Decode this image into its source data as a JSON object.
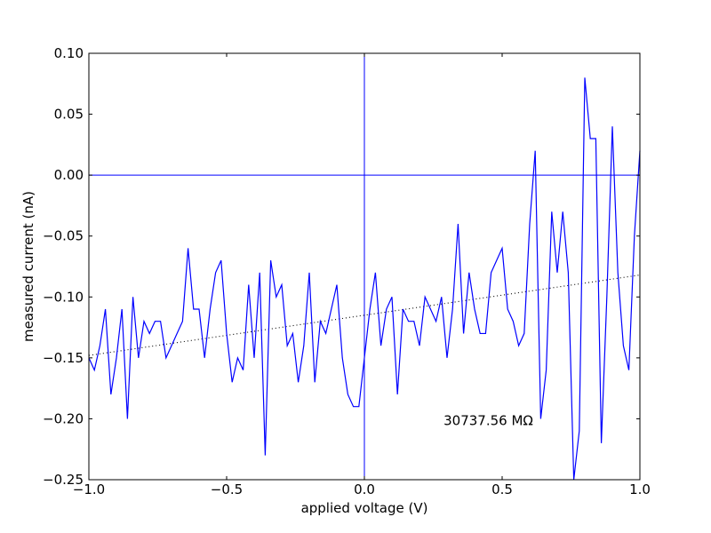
{
  "chart_data": {
    "type": "line",
    "title": "",
    "xlabel": "applied voltage (V)",
    "ylabel": "measured current (nA)",
    "xlim": [
      -1.0,
      1.0
    ],
    "ylim": [
      -0.25,
      0.1
    ],
    "xticks": [
      -1.0,
      -0.5,
      0.0,
      0.5,
      1.0
    ],
    "xtick_labels": [
      "−1.0",
      "−0.5",
      "0.0",
      "0.5",
      "1.0"
    ],
    "yticks": [
      -0.25,
      -0.2,
      -0.15,
      -0.1,
      -0.05,
      0.0,
      0.05,
      0.1
    ],
    "ytick_labels": [
      "−0.25",
      "−0.20",
      "−0.15",
      "−0.10",
      "−0.05",
      "0.00",
      "0.05",
      "0.10"
    ],
    "grid": false,
    "colors": {
      "data": "#0000ff",
      "fit": "#000000"
    },
    "annotation": {
      "text": "30737.56 MΩ",
      "x": 0.45,
      "y": -0.205
    },
    "reference_lines": {
      "horizontal_y": 0.0,
      "vertical_x": 0.0
    },
    "fit_line": {
      "style": "dotted",
      "x": [
        -1.0,
        1.0
      ],
      "y": [
        -0.148,
        -0.082
      ]
    },
    "series": [
      {
        "x": [
          -1.0,
          -0.98,
          -0.96,
          -0.94,
          -0.92,
          -0.9,
          -0.88,
          -0.86,
          -0.84,
          -0.82,
          -0.8,
          -0.78,
          -0.76,
          -0.74,
          -0.72,
          -0.7,
          -0.68,
          -0.66,
          -0.64,
          -0.62,
          -0.6,
          -0.58,
          -0.56,
          -0.54,
          -0.52,
          -0.5,
          -0.48,
          -0.46,
          -0.44,
          -0.42,
          -0.4,
          -0.38,
          -0.36,
          -0.34,
          -0.32,
          -0.3,
          -0.28,
          -0.26,
          -0.24,
          -0.22,
          -0.2,
          -0.18,
          -0.16,
          -0.14,
          -0.12,
          -0.1,
          -0.08,
          -0.06,
          -0.04,
          -0.02,
          0.0,
          0.02,
          0.04,
          0.06,
          0.08,
          0.1,
          0.12,
          0.14,
          0.16,
          0.18,
          0.2,
          0.22,
          0.24,
          0.26,
          0.28,
          0.3,
          0.32,
          0.34,
          0.36,
          0.38,
          0.4,
          0.42,
          0.44,
          0.46,
          0.48,
          0.5,
          0.52,
          0.54,
          0.56,
          0.58,
          0.6,
          0.62,
          0.64,
          0.66,
          0.68,
          0.7,
          0.72,
          0.74,
          0.76,
          0.78,
          0.8,
          0.82,
          0.84,
          0.86,
          0.88,
          0.9,
          0.92,
          0.94,
          0.96,
          0.98,
          1.0
        ],
        "y": [
          -0.15,
          -0.16,
          -0.14,
          -0.11,
          -0.18,
          -0.15,
          -0.11,
          -0.2,
          -0.1,
          -0.15,
          -0.12,
          -0.13,
          -0.12,
          -0.12,
          -0.15,
          -0.14,
          -0.13,
          -0.12,
          -0.06,
          -0.11,
          -0.11,
          -0.15,
          -0.11,
          -0.08,
          -0.07,
          -0.13,
          -0.17,
          -0.15,
          -0.16,
          -0.09,
          -0.15,
          -0.08,
          -0.23,
          -0.07,
          -0.1,
          -0.09,
          -0.14,
          -0.13,
          -0.17,
          -0.14,
          -0.08,
          -0.17,
          -0.12,
          -0.13,
          -0.11,
          -0.09,
          -0.15,
          -0.18,
          -0.19,
          -0.19,
          -0.15,
          -0.11,
          -0.08,
          -0.14,
          -0.11,
          -0.1,
          -0.18,
          -0.11,
          -0.12,
          -0.12,
          -0.14,
          -0.1,
          -0.11,
          -0.12,
          -0.1,
          -0.15,
          -0.11,
          -0.04,
          -0.13,
          -0.08,
          -0.11,
          -0.13,
          -0.13,
          -0.08,
          -0.07,
          -0.06,
          -0.11,
          -0.12,
          -0.14,
          -0.13,
          -0.04,
          0.02,
          -0.2,
          -0.16,
          -0.03,
          -0.08,
          -0.03,
          -0.08,
          -0.25,
          -0.21,
          0.08,
          0.03,
          0.03,
          -0.22,
          -0.1,
          0.04,
          -0.08,
          -0.14,
          -0.16,
          -0.05,
          0.02
        ]
      }
    ]
  }
}
